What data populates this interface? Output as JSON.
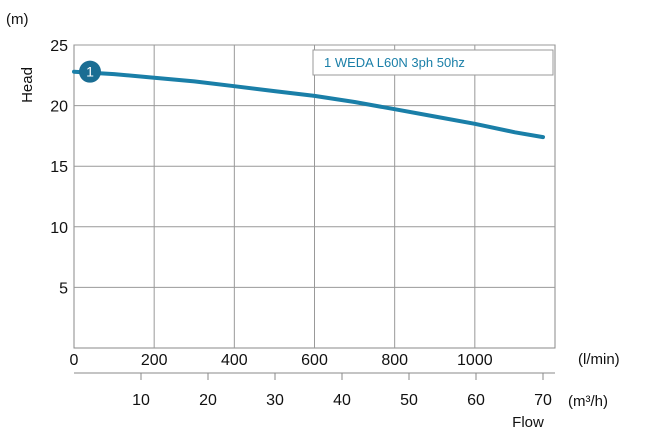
{
  "chart_data": {
    "type": "line",
    "title": "",
    "xlabel": "Flow",
    "ylabel": "Head",
    "y_unit": "(m)",
    "x_unit_primary": "(l/min)",
    "x_unit_secondary": "(m³/h)",
    "xlim": [
      0,
      1200
    ],
    "ylim": [
      0,
      25
    ],
    "x_ticks": [
      0,
      200,
      400,
      600,
      800,
      1000
    ],
    "x_tick_labels": [
      "0",
      "200",
      "400",
      "600",
      "800",
      "1000"
    ],
    "x2_ticks": [
      10,
      20,
      30,
      40,
      50,
      60,
      70
    ],
    "x2_tick_labels": [
      "10",
      "20",
      "30",
      "40",
      "50",
      "60",
      "70"
    ],
    "y_ticks": [
      5,
      10,
      15,
      20,
      25
    ],
    "y_tick_labels": [
      "5",
      "10",
      "15",
      "20",
      "25"
    ],
    "grid": true,
    "legend": {
      "label": "1 WEDA L60N 3ph 50hz",
      "placement": "top-right"
    },
    "series": [
      {
        "name": "1 WEDA L60N 3ph 50hz",
        "marker_label": "1",
        "color": "#1a7fa8",
        "x": [
          0,
          100,
          200,
          300,
          400,
          500,
          600,
          700,
          800,
          900,
          1000,
          1100,
          1170
        ],
        "y": [
          22.8,
          22.6,
          22.3,
          22.0,
          21.6,
          21.2,
          20.8,
          20.3,
          19.7,
          19.1,
          18.5,
          17.8,
          17.4
        ]
      }
    ]
  }
}
